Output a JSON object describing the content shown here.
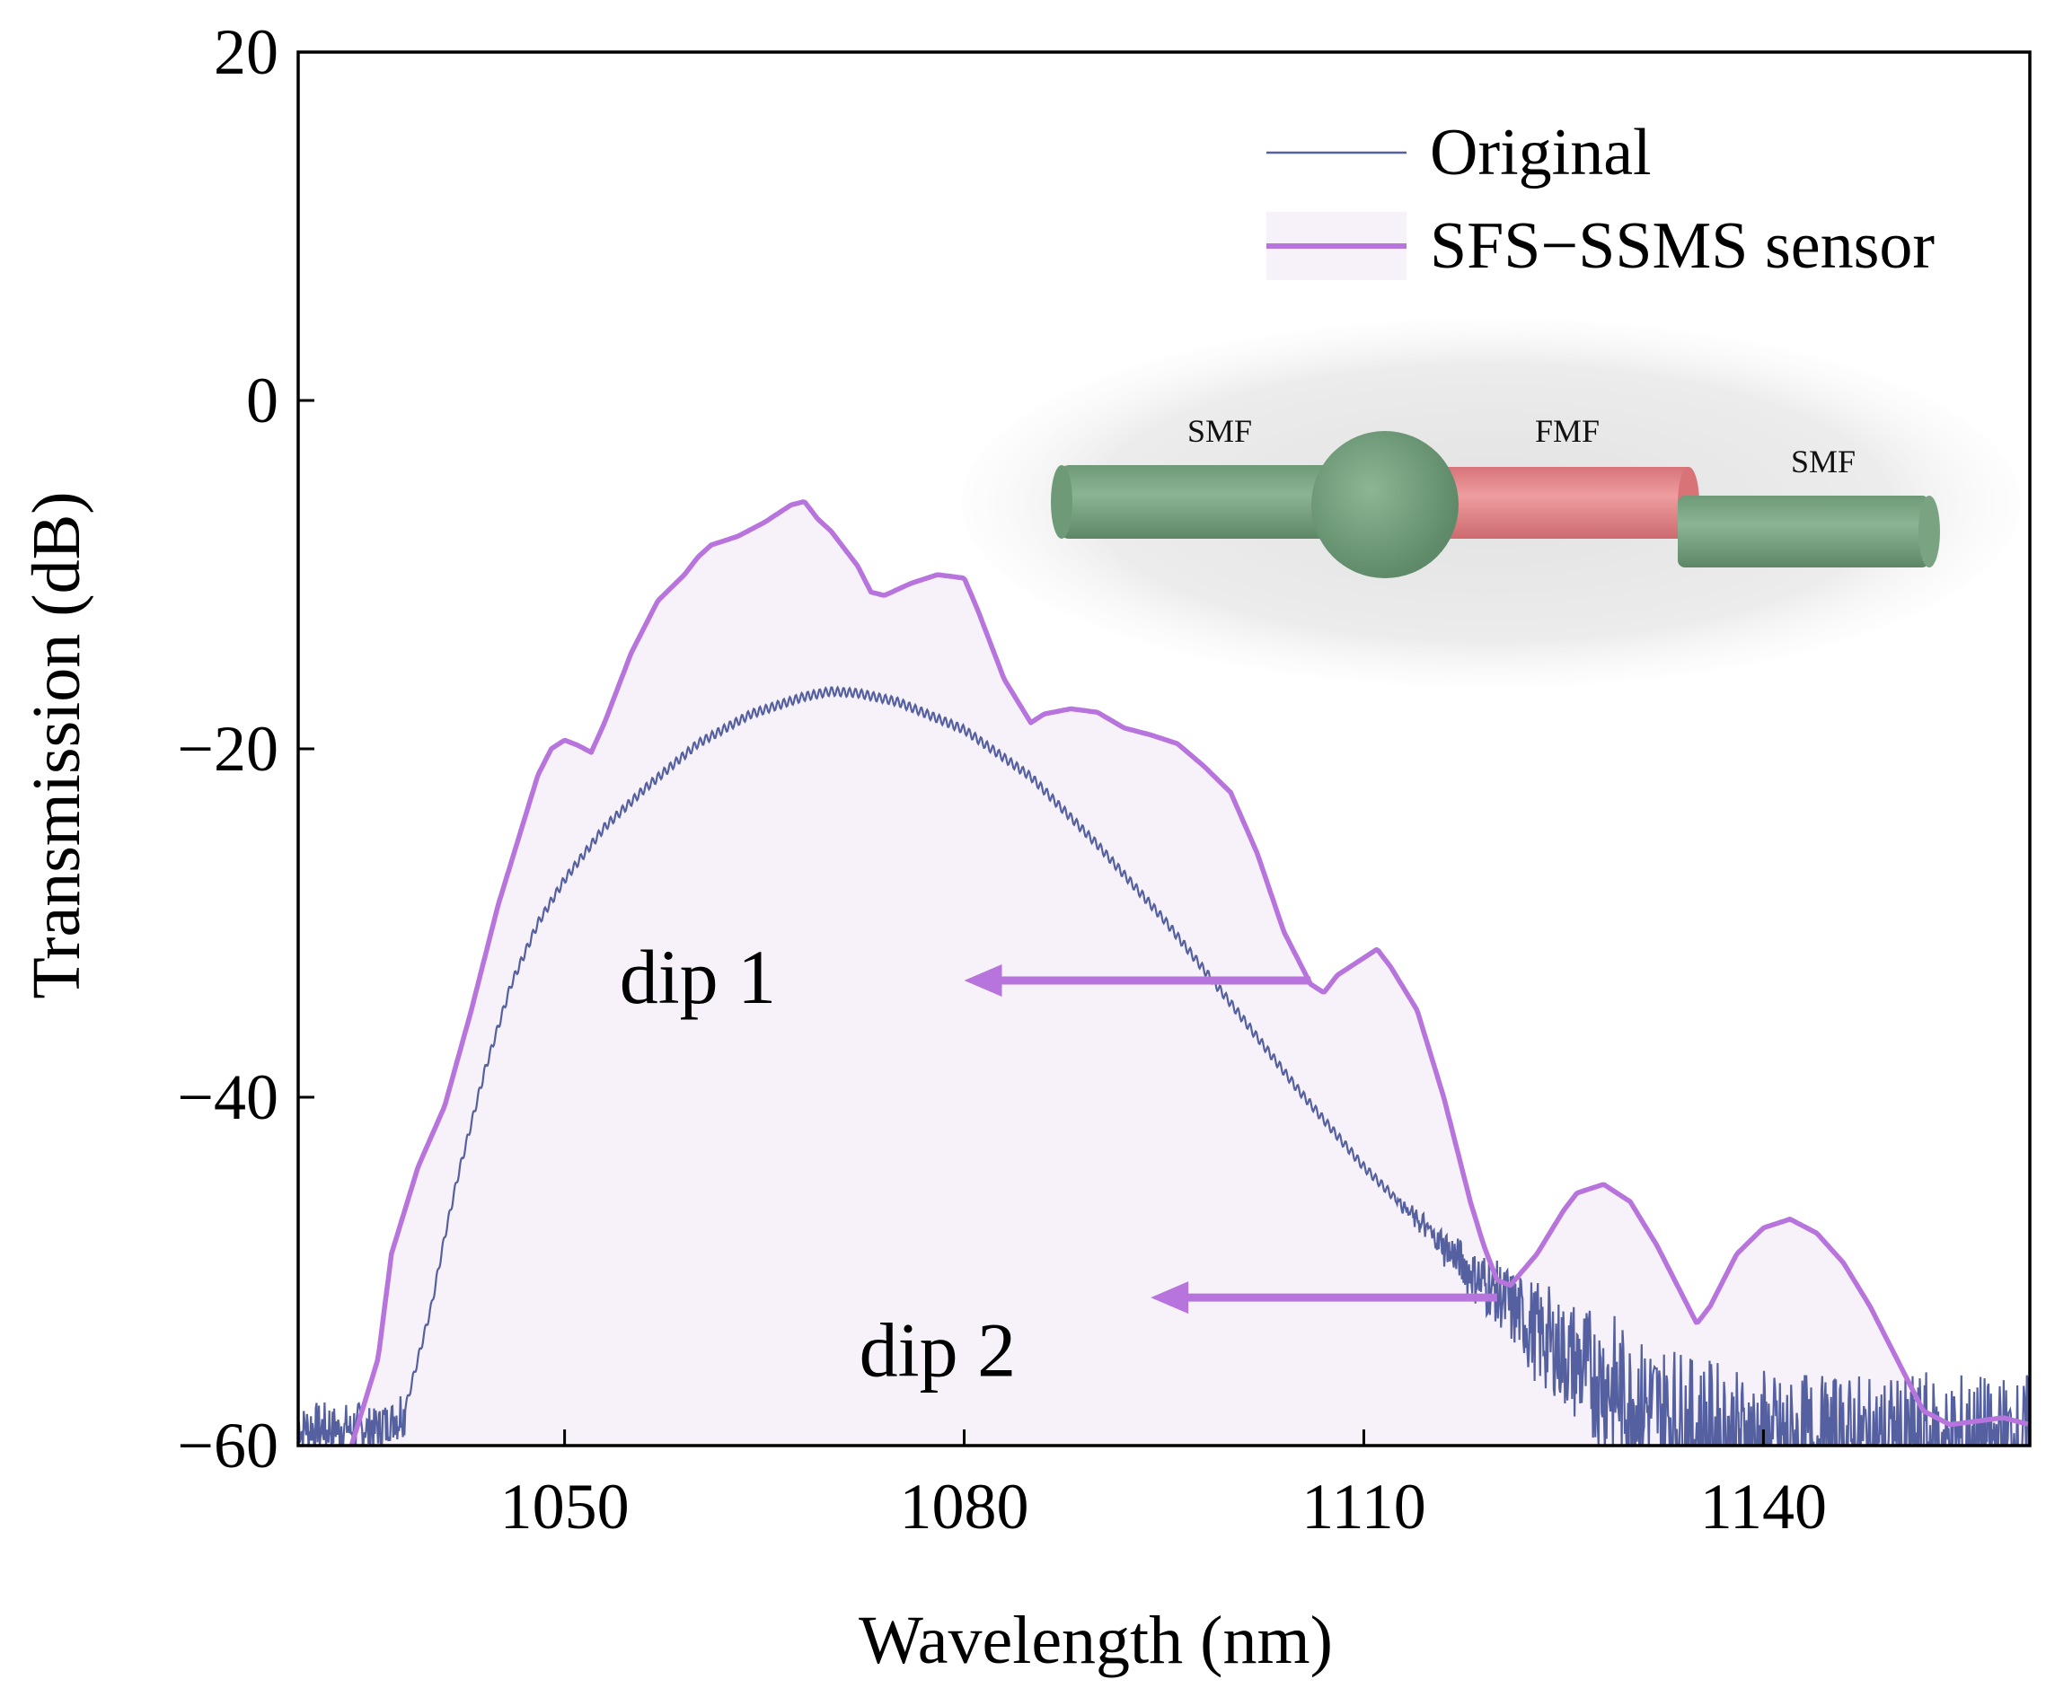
{
  "chart_data": {
    "type": "line",
    "xlabel": "Wavelength (nm)",
    "ylabel": "Transmission (dB)",
    "xlim": [
      1030,
      1160
    ],
    "ylim": [
      -60,
      20
    ],
    "xticks": [
      1050,
      1080,
      1110,
      1140
    ],
    "xtick_labels": [
      "1050",
      "1080",
      "1110",
      "1140"
    ],
    "yticks": [
      -60,
      -40,
      -20,
      0,
      20
    ],
    "ytick_labels": [
      "−60",
      "−40",
      "−20",
      "0",
      "20"
    ],
    "grid": false,
    "legend_position": "top-right",
    "series": [
      {
        "name": "Original",
        "color": "#5560a0",
        "x": [
          1030,
          1036,
          1038,
          1039,
          1040,
          1041,
          1042,
          1044,
          1046,
          1048,
          1050,
          1053,
          1056,
          1060,
          1064,
          1068,
          1070,
          1072,
          1075,
          1080,
          1085,
          1090,
          1095,
          1100,
          1105,
          1110,
          1115,
          1118,
          1120,
          1123,
          1126,
          1130,
          1135,
          1140,
          1150,
          1160
        ],
        "y": [
          -59,
          -59,
          -58,
          -55,
          -52,
          -48,
          -44.5,
          -38.5,
          -33.5,
          -30,
          -27.5,
          -24.5,
          -22.3,
          -19.7,
          -18,
          -17,
          -16.7,
          -16.8,
          -17.3,
          -18.9,
          -21.6,
          -25.5,
          -29.8,
          -34.6,
          -39.5,
          -44,
          -47.8,
          -50,
          -51.3,
          -53.5,
          -55.3,
          -57.3,
          -59,
          -59.8,
          -60,
          -60
        ]
      },
      {
        "name": "SFS−SSMS sensor",
        "color": "#b774dd",
        "fill": "#f7f2f9",
        "x": [
          1034,
          1036,
          1037,
          1039,
          1041,
          1043,
          1045,
          1047,
          1048,
          1049,
          1050,
          1051,
          1052,
          1053,
          1055,
          1057,
          1059,
          1060,
          1061,
          1063,
          1065,
          1067,
          1068,
          1069,
          1070,
          1072,
          1073,
          1074,
          1076,
          1078,
          1080,
          1081,
          1083,
          1085,
          1086,
          1088,
          1090,
          1092,
          1094,
          1096,
          1098,
          1100,
          1102,
          1104,
          1106,
          1107,
          1108,
          1109,
          1110,
          1111,
          1112,
          1114,
          1116,
          1118,
          1119,
          1120,
          1121,
          1123,
          1125,
          1126,
          1128,
          1130,
          1132,
          1134,
          1135,
          1136,
          1138,
          1140,
          1142,
          1144,
          1146,
          1148,
          1150,
          1152,
          1154,
          1156,
          1158,
          1160
        ],
        "y": [
          -60,
          -55,
          -49,
          -44,
          -40.5,
          -35,
          -29,
          -24,
          -21.5,
          -20,
          -19.5,
          -19.8,
          -20.2,
          -18.5,
          -14.5,
          -11.5,
          -10,
          -9,
          -8.3,
          -7.8,
          -7,
          -6,
          -5.8,
          -6.8,
          -7.5,
          -9.5,
          -11,
          -11.2,
          -10.5,
          -10,
          -10.2,
          -12,
          -16,
          -18.5,
          -18,
          -17.7,
          -17.9,
          -18.8,
          -19.2,
          -19.7,
          -21,
          -22.5,
          -26,
          -30.5,
          -33.5,
          -34,
          -33,
          -32.5,
          -32,
          -31.5,
          -32.5,
          -35,
          -40,
          -46,
          -48.5,
          -50.5,
          -50.8,
          -49,
          -46.5,
          -45.5,
          -45,
          -46,
          -48.5,
          -51.5,
          -53,
          -52,
          -49,
          -47.5,
          -47,
          -47.8,
          -49.5,
          -52,
          -55,
          -58,
          -58.8,
          -58.6,
          -58.4,
          -58.8
        ]
      }
    ],
    "annotations": [
      {
        "text": "dip 1",
        "arrow_from": [
          1106,
          -33.3
        ],
        "arrow_to": [
          1080,
          -33.3
        ],
        "text_anchor": [
          1060,
          -34.6
        ]
      },
      {
        "text": "dip 2",
        "arrow_from": [
          1120,
          -51.5
        ],
        "arrow_to": [
          1094,
          -51.5
        ],
        "text_anchor": [
          1078,
          -56
        ]
      }
    ],
    "legend": [
      {
        "label": "Original",
        "style": "thin-line"
      },
      {
        "label": "SFS−SSMS sensor",
        "style": "thick-line-with-fill"
      }
    ],
    "inset": {
      "description_labels": [
        "SMF",
        "FMF",
        "SMF"
      ]
    }
  },
  "colors": {
    "original": "#5560a0",
    "sensor": "#b774dd",
    "sensor_fill": "#f7f2f9",
    "smf_green": "#7fa787",
    "fmf_red": "#e58a8e",
    "inset_bg": "#ebebeb"
  }
}
